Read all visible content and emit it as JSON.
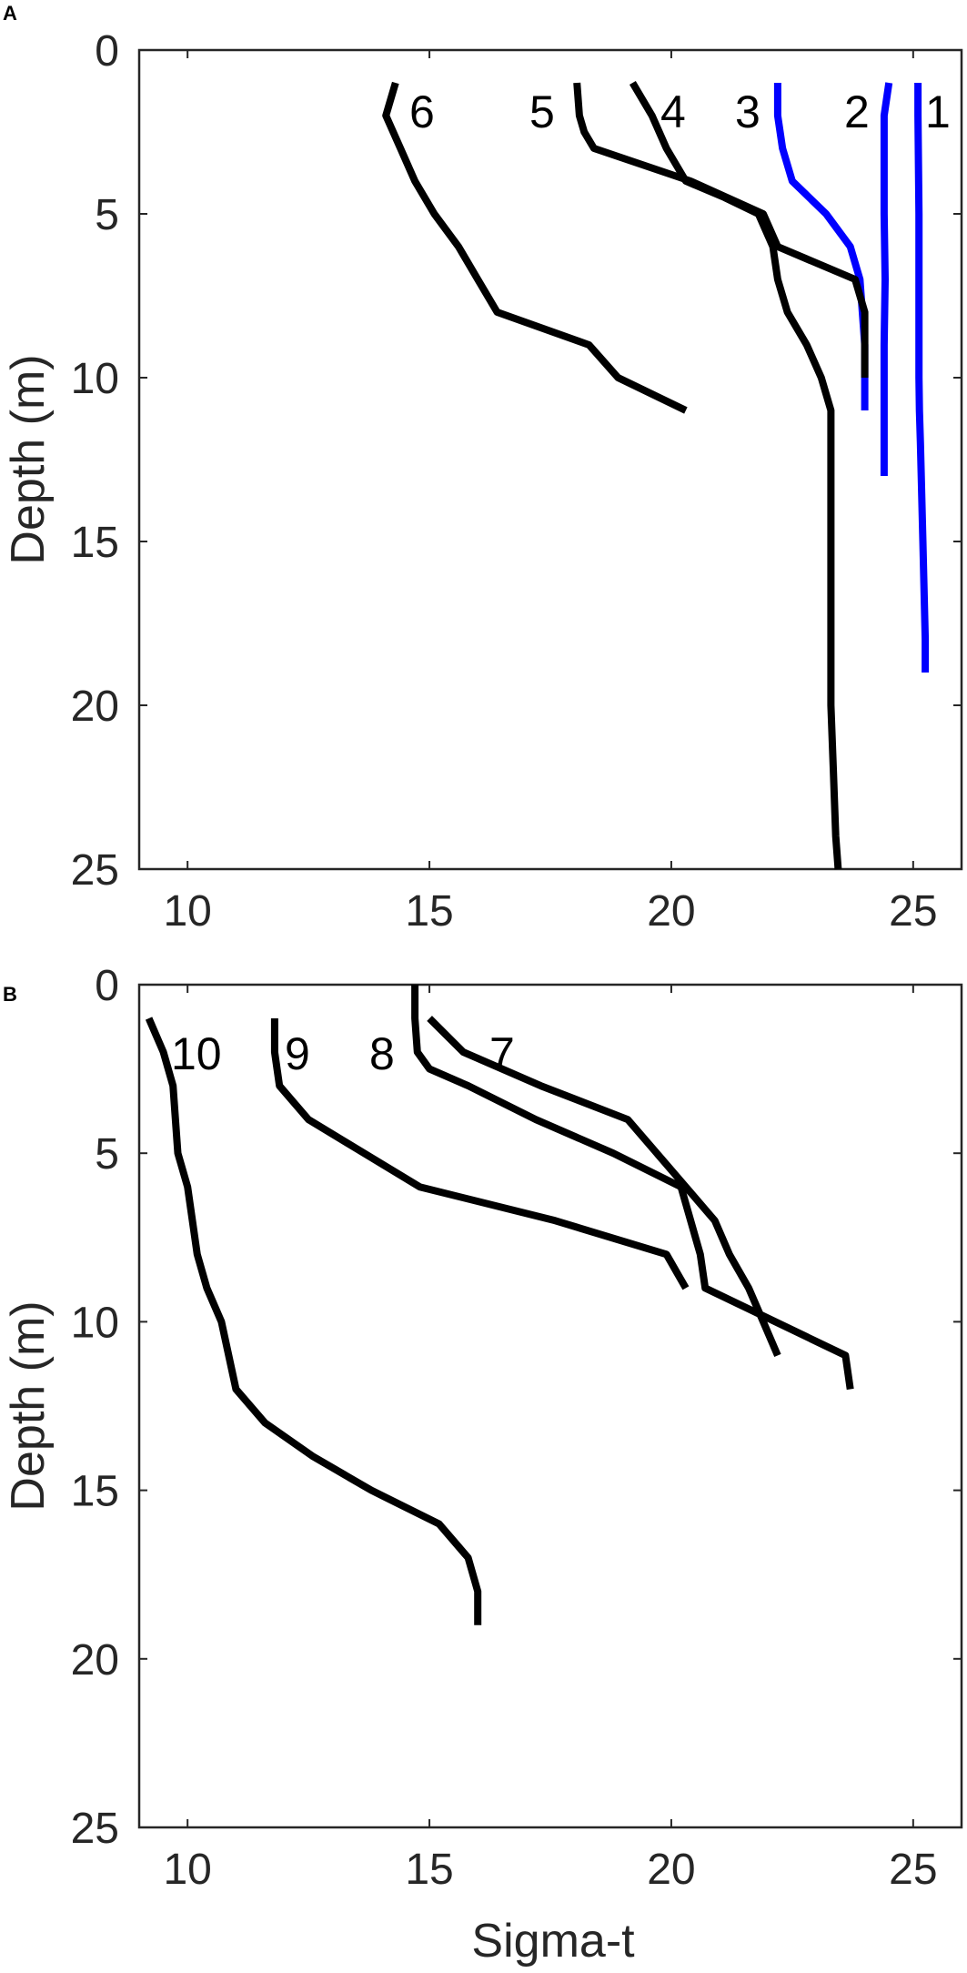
{
  "chart_data": [
    {
      "panel": "A",
      "type": "line",
      "xlabel": "",
      "ylabel": "Depth (m)",
      "xlim": [
        9,
        26
      ],
      "ylim": [
        0,
        25
      ],
      "y_reversed": true,
      "xticks": [
        "10",
        "15",
        "20",
        "25"
      ],
      "yticks": [
        "0",
        "5",
        "10",
        "15",
        "20",
        "25"
      ],
      "grid": false,
      "series": [
        {
          "name": "1",
          "color": "#0000ff",
          "x": [
            25.1,
            25.1,
            25.12,
            25.12,
            25.12,
            25.13,
            25.15,
            25.2,
            25.25,
            25.25
          ],
          "y": [
            1,
            2,
            5,
            8,
            10,
            11,
            12,
            15,
            18,
            19
          ]
        },
        {
          "name": "2",
          "color": "#0000ff",
          "x": [
            24.5,
            24.4,
            24.4,
            24.42,
            24.4,
            24.4,
            24.4
          ],
          "y": [
            1,
            2,
            5,
            7,
            9,
            12,
            13
          ]
        },
        {
          "name": "3",
          "color": "#0000ff",
          "x": [
            22.2,
            22.2,
            22.3,
            22.5,
            23.2,
            23.7,
            23.9,
            24.0,
            24.0
          ],
          "y": [
            1,
            2,
            3,
            4,
            5,
            6,
            7,
            9,
            11
          ]
        },
        {
          "name": "4",
          "color": "#000000",
          "x": [
            19.2,
            19.6,
            19.9,
            20.3,
            21.1,
            21.8,
            22.1,
            22.2,
            22.4,
            22.8,
            23.1,
            23.3,
            23.3,
            23.3,
            23.3,
            23.35,
            23.4,
            23.45,
            23.45
          ],
          "y": [
            1,
            2,
            3,
            4,
            4.5,
            5,
            6,
            7,
            8,
            9,
            10,
            11,
            15,
            18,
            20,
            22,
            24,
            25,
            25
          ]
        },
        {
          "name": "5",
          "color": "#000000",
          "x": [
            18.05,
            18.1,
            18.2,
            18.4,
            20.4,
            21.9,
            22.2,
            23.8,
            24.0,
            24.0
          ],
          "y": [
            1,
            2,
            2.5,
            3,
            4,
            5,
            6,
            7,
            8,
            10
          ]
        },
        {
          "name": "6",
          "color": "#000000",
          "x": [
            14.3,
            14.1,
            14.4,
            14.7,
            15.1,
            15.6,
            16.0,
            16.4,
            18.3,
            18.9,
            20.3
          ],
          "y": [
            1,
            2,
            3,
            4,
            5,
            6,
            7,
            8,
            9,
            10,
            11
          ]
        }
      ],
      "curve_labels": [
        "1",
        "2",
        "3",
        "4",
        "5",
        "6"
      ]
    },
    {
      "panel": "B",
      "type": "line",
      "xlabel": "Sigma-t",
      "ylabel": "Depth (m)",
      "xlim": [
        9,
        26
      ],
      "ylim": [
        0,
        25
      ],
      "y_reversed": true,
      "xticks": [
        "10",
        "15",
        "20",
        "25"
      ],
      "yticks": [
        "0",
        "5",
        "10",
        "15",
        "20",
        "25"
      ],
      "grid": false,
      "series": [
        {
          "name": "7",
          "color": "#000000",
          "x": [
            15.0,
            15.7,
            17.3,
            19.1,
            19.7,
            20.3,
            20.9,
            21.2,
            21.6,
            21.9,
            22.2
          ],
          "y": [
            1,
            2,
            3,
            4,
            5,
            6,
            7,
            8,
            9,
            10,
            11
          ]
        },
        {
          "name": "8",
          "color": "#000000",
          "x": [
            14.7,
            14.7,
            14.75,
            15.0,
            15.8,
            17.2,
            18.8,
            20.2,
            20.6,
            20.7,
            23.6,
            23.7
          ],
          "y": [
            0,
            1,
            2,
            2.5,
            3,
            4,
            5,
            6,
            8,
            9,
            11,
            12
          ]
        },
        {
          "name": "9",
          "color": "#000000",
          "x": [
            11.8,
            11.8,
            11.9,
            12.5,
            14.8,
            17.6,
            19.9,
            20.3
          ],
          "y": [
            1,
            2,
            3,
            4,
            6,
            7,
            8,
            9
          ]
        },
        {
          "name": "10",
          "color": "#000000",
          "x": [
            9.2,
            9.5,
            9.7,
            9.8,
            10.0,
            10.2,
            10.4,
            10.7,
            11.0,
            11.6,
            12.6,
            13.8,
            15.2,
            15.8,
            16.0,
            16.0
          ],
          "y": [
            1,
            2,
            3,
            5,
            6,
            8,
            9,
            10,
            12,
            13,
            14,
            15,
            16,
            17,
            18,
            19
          ]
        }
      ],
      "curve_labels": [
        "7",
        "8",
        "9",
        "10"
      ]
    }
  ]
}
